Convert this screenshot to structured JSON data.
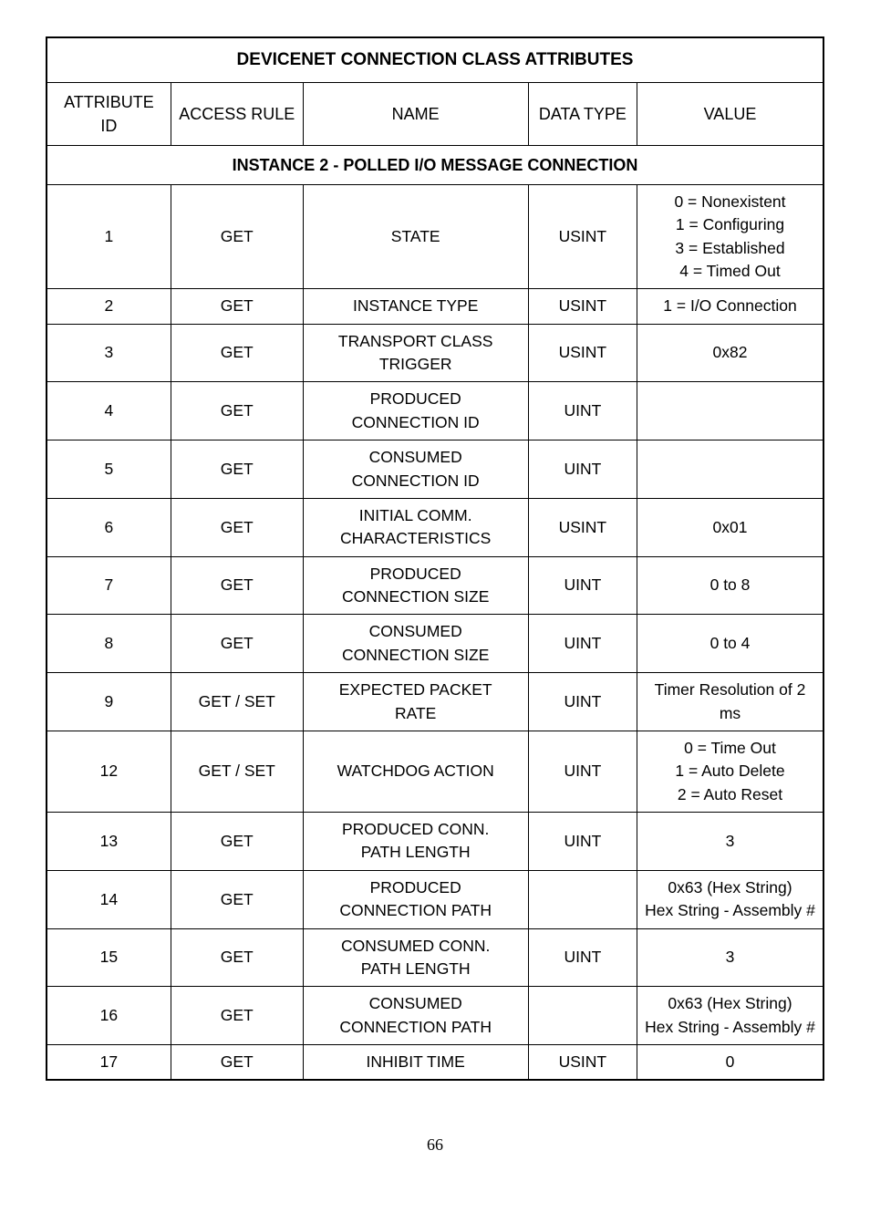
{
  "table": {
    "title": "DEVICENET CONNECTION CLASS ATTRIBUTES",
    "columns": [
      "ATTRIBUTE ID",
      "ACCESS RULE",
      "NAME",
      "DATA TYPE",
      "VALUE"
    ],
    "section_header": "INSTANCE 2 - POLLED I/O MESSAGE CONNECTION",
    "rows": [
      {
        "attr": "1",
        "access": "GET",
        "name": "STATE",
        "type": "USINT",
        "value": "0 = Nonexistent\n1 = Configuring\n3 = Established\n4 = Timed Out"
      },
      {
        "attr": "2",
        "access": "GET",
        "name": "INSTANCE TYPE",
        "type": "USINT",
        "value": "1 = I/O Connection"
      },
      {
        "attr": "3",
        "access": "GET",
        "name": "TRANSPORT CLASS\nTRIGGER",
        "type": "USINT",
        "value": "0x82"
      },
      {
        "attr": "4",
        "access": "GET",
        "name": "PRODUCED\nCONNECTION ID",
        "type": "UINT",
        "value": ""
      },
      {
        "attr": "5",
        "access": "GET",
        "name": "CONSUMED\nCONNECTION ID",
        "type": "UINT",
        "value": ""
      },
      {
        "attr": "6",
        "access": "GET",
        "name": "INITIAL COMM.\nCHARACTERISTICS",
        "type": "USINT",
        "value": "0x01"
      },
      {
        "attr": "7",
        "access": "GET",
        "name": "PRODUCED\nCONNECTION SIZE",
        "type": "UINT",
        "value": "0 to 8"
      },
      {
        "attr": "8",
        "access": "GET",
        "name": "CONSUMED\nCONNECTION SIZE",
        "type": "UINT",
        "value": "0 to 4"
      },
      {
        "attr": "9",
        "access": "GET / SET",
        "name": "EXPECTED PACKET\nRATE",
        "type": "UINT",
        "value": "Timer Resolution of 2 ms"
      },
      {
        "attr": "12",
        "access": "GET / SET",
        "name": "WATCHDOG ACTION",
        "type": "UINT",
        "value": "0 = Time Out\n1 = Auto Delete\n2 = Auto Reset"
      },
      {
        "attr": "13",
        "access": "GET",
        "name": "PRODUCED CONN.\nPATH LENGTH",
        "type": "UINT",
        "value": "3"
      },
      {
        "attr": "14",
        "access": "GET",
        "name": "PRODUCED\nCONNECTION PATH",
        "type": "",
        "value": "0x63 (Hex String)\nHex String - Assembly #"
      },
      {
        "attr": "15",
        "access": "GET",
        "name": "CONSUMED CONN.\nPATH LENGTH",
        "type": "UINT",
        "value": "3"
      },
      {
        "attr": "16",
        "access": "GET",
        "name": "CONSUMED\nCONNECTION PATH",
        "type": "",
        "value": "0x63 (Hex String)\nHex String - Assembly #"
      },
      {
        "attr": "17",
        "access": "GET",
        "name": "INHIBIT TIME",
        "type": "USINT",
        "value": "0"
      }
    ]
  },
  "page_number": "66"
}
